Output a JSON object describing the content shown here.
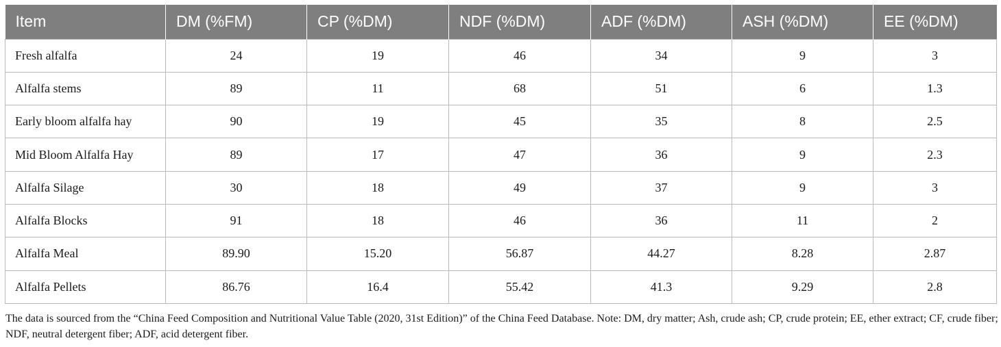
{
  "table": {
    "headers": [
      "Item",
      "DM (%FM)",
      "CP (%DM)",
      "NDF (%DM)",
      "ADF (%DM)",
      "ASH (%DM)",
      "EE (%DM)"
    ],
    "rows": [
      [
        "Fresh alfalfa",
        "24",
        "19",
        "46",
        "34",
        "9",
        "3"
      ],
      [
        "Alfalfa stems",
        "89",
        "11",
        "68",
        "51",
        "6",
        "1.3"
      ],
      [
        "Early bloom alfalfa hay",
        "90",
        "19",
        "45",
        "35",
        "8",
        "2.5"
      ],
      [
        "Mid Bloom Alfalfa Hay",
        "89",
        "17",
        "47",
        "36",
        "9",
        "2.3"
      ],
      [
        "Alfalfa Silage",
        "30",
        "18",
        "49",
        "37",
        "9",
        "3"
      ],
      [
        "Alfalfa Blocks",
        "91",
        "18",
        "46",
        "36",
        "11",
        "2"
      ],
      [
        "Alfalfa Meal",
        "89.90",
        "15.20",
        "56.87",
        "44.27",
        "8.28",
        "2.87"
      ],
      [
        "Alfalfa Pellets",
        "86.76",
        "16.4",
        "55.42",
        "41.3",
        "9.29",
        "2.8"
      ]
    ]
  },
  "note": "The data is sourced from the “China Feed Composition and Nutritional Value Table (2020, 31st Edition)” of the China Feed Database. Note: DM, dry matter; Ash, crude ash; CP, crude protein; EE, ether extract; CF, crude fiber; NDF, neutral detergent fiber; ADF, acid detergent fiber.",
  "colors": {
    "header_bg": "#7f7f80",
    "header_text": "#ffffff",
    "grid": "#b9b9b9"
  }
}
